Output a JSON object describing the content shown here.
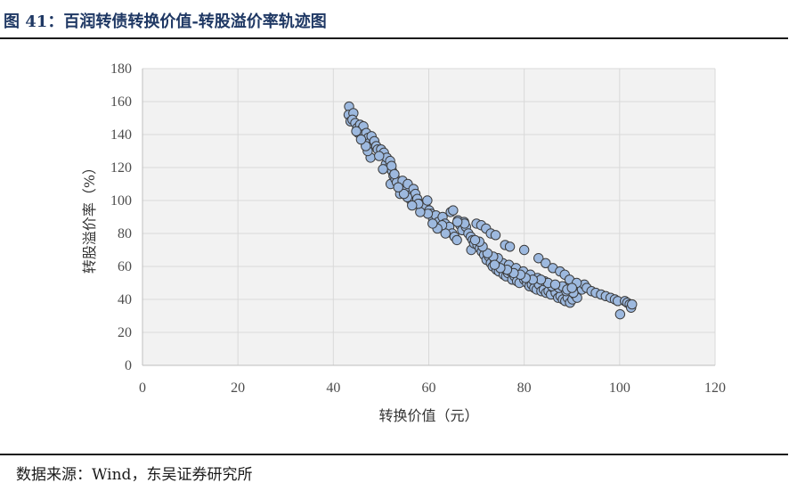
{
  "header": {
    "title": "图 41：百润转债转换价值-转股溢价率轨迹图"
  },
  "footer": {
    "source": "数据来源：Wind，东吴证券研究所"
  },
  "colors": {
    "title": "#1f3864",
    "marker_fill": "#9db9df",
    "marker_stroke": "#3b3b3b",
    "grid": "#d9d9d9",
    "plot_bg": "#f2f2f2"
  },
  "chart_data": {
    "type": "scatter",
    "title": "",
    "xlabel": "转换价值（元）",
    "ylabel": "转股溢价率（%）",
    "xlim": [
      0,
      120
    ],
    "ylim": [
      0,
      180
    ],
    "xticks": [
      0,
      20,
      40,
      60,
      80,
      100,
      120
    ],
    "yticks": [
      0,
      20,
      40,
      60,
      80,
      100,
      120,
      140,
      160,
      180
    ],
    "grid": true,
    "legend": "none",
    "points": [
      [
        43.3,
        157
      ],
      [
        43.2,
        152
      ],
      [
        43.6,
        148
      ],
      [
        44.2,
        153
      ],
      [
        44.0,
        149
      ],
      [
        44.6,
        147
      ],
      [
        45.0,
        144
      ],
      [
        45.2,
        141
      ],
      [
        45.6,
        146
      ],
      [
        45.9,
        143
      ],
      [
        46.3,
        145
      ],
      [
        46.2,
        140
      ],
      [
        46.6,
        137
      ],
      [
        46.9,
        141
      ],
      [
        47.3,
        138
      ],
      [
        47.6,
        135
      ],
      [
        48.0,
        139
      ],
      [
        48.3,
        134
      ],
      [
        48.6,
        136
      ],
      [
        49.0,
        133
      ],
      [
        47.8,
        126
      ],
      [
        49.3,
        131
      ],
      [
        50.0,
        131
      ],
      [
        50.6,
        129
      ],
      [
        51.0,
        122
      ],
      [
        51.2,
        126
      ],
      [
        51.6,
        120
      ],
      [
        51.9,
        124
      ],
      [
        52.3,
        118
      ],
      [
        52.2,
        121
      ],
      [
        52.6,
        115
      ],
      [
        52.0,
        110
      ],
      [
        53.0,
        113
      ],
      [
        53.3,
        111
      ],
      [
        53.9,
        108
      ],
      [
        54.5,
        112
      ],
      [
        54.0,
        104
      ],
      [
        55.0,
        106
      ],
      [
        55.6,
        110
      ],
      [
        56.0,
        103
      ],
      [
        56.3,
        100
      ],
      [
        56.8,
        107
      ],
      [
        57.2,
        104
      ],
      [
        57.6,
        101
      ],
      [
        58.0,
        98
      ],
      [
        58.4,
        96
      ],
      [
        58.8,
        95
      ],
      [
        59.3,
        97
      ],
      [
        59.7,
        100
      ],
      [
        60.1,
        94
      ],
      [
        60.5,
        92
      ],
      [
        60.9,
        89
      ],
      [
        61.5,
        91
      ],
      [
        62.0,
        87
      ],
      [
        62.4,
        84
      ],
      [
        62.9,
        90
      ],
      [
        63.4,
        86
      ],
      [
        63.8,
        82
      ],
      [
        64.3,
        84
      ],
      [
        64.9,
        80
      ],
      [
        65.4,
        78
      ],
      [
        65.9,
        76
      ],
      [
        64.6,
        93
      ],
      [
        65.1,
        94
      ],
      [
        66.1,
        88
      ],
      [
        66.6,
        85
      ],
      [
        67.0,
        82
      ],
      [
        67.4,
        87
      ],
      [
        67.8,
        84
      ],
      [
        68.3,
        80
      ],
      [
        68.8,
        78
      ],
      [
        69.2,
        76
      ],
      [
        68.9,
        70
      ],
      [
        69.5,
        74
      ],
      [
        70.2,
        73
      ],
      [
        70.7,
        71
      ],
      [
        71.1,
        69
      ],
      [
        71.6,
        67
      ],
      [
        72.1,
        64
      ],
      [
        72.6,
        66
      ],
      [
        73.0,
        62
      ],
      [
        73.4,
        60
      ],
      [
        73.9,
        63
      ],
      [
        74.2,
        58
      ],
      [
        74.7,
        57
      ],
      [
        75.2,
        60
      ],
      [
        75.7,
        55
      ],
      [
        76.2,
        54
      ],
      [
        76.6,
        56
      ],
      [
        77.1,
        57
      ],
      [
        77.5,
        52
      ],
      [
        78.0,
        54
      ],
      [
        78.5,
        51
      ],
      [
        79.0,
        50
      ],
      [
        79.5,
        56
      ],
      [
        80.0,
        52
      ],
      [
        80.6,
        50
      ],
      [
        81.1,
        48
      ],
      [
        81.6,
        49
      ],
      [
        82.1,
        47
      ],
      [
        82.6,
        46
      ],
      [
        83.1,
        49
      ],
      [
        83.6,
        45
      ],
      [
        84.1,
        46
      ],
      [
        84.6,
        44
      ],
      [
        85.1,
        45
      ],
      [
        85.6,
        43
      ],
      [
        86.1,
        47
      ],
      [
        86.6,
        44
      ],
      [
        87.1,
        41
      ],
      [
        87.6,
        42
      ],
      [
        88.1,
        40
      ],
      [
        88.6,
        39
      ],
      [
        89.1,
        41
      ],
      [
        89.6,
        38
      ],
      [
        90.1,
        40
      ],
      [
        90.6,
        43
      ],
      [
        91.1,
        41
      ],
      [
        91.6,
        48
      ],
      [
        92.1,
        46
      ],
      [
        92.6,
        49
      ],
      [
        93.1,
        47
      ],
      [
        94.1,
        45
      ],
      [
        95.0,
        44
      ],
      [
        96.1,
        43
      ],
      [
        97.1,
        42
      ],
      [
        98.1,
        41
      ],
      [
        99.0,
        40
      ],
      [
        99.6,
        39
      ],
      [
        100.1,
        31
      ],
      [
        101.1,
        39
      ],
      [
        101.6,
        38
      ],
      [
        102.1,
        37
      ],
      [
        102.4,
        35
      ],
      [
        102.6,
        37
      ],
      [
        70.0,
        86
      ],
      [
        71.0,
        85
      ],
      [
        72.0,
        83
      ],
      [
        73.0,
        80
      ],
      [
        74.0,
        79
      ],
      [
        76.0,
        73
      ],
      [
        77.0,
        72
      ],
      [
        80.0,
        70
      ],
      [
        83.0,
        65
      ],
      [
        84.5,
        62
      ],
      [
        86.0,
        59
      ],
      [
        87.5,
        57
      ],
      [
        88.5,
        55
      ],
      [
        89.5,
        52
      ],
      [
        91.0,
        50
      ],
      [
        67.5,
        86
      ],
      [
        66.0,
        87
      ],
      [
        63.5,
        80
      ],
      [
        62.8,
        85
      ],
      [
        61.8,
        83
      ],
      [
        60.8,
        86
      ],
      [
        59.8,
        92
      ],
      [
        58.2,
        93
      ],
      [
        57.8,
        98
      ],
      [
        56.5,
        97
      ],
      [
        55.5,
        102
      ],
      [
        54.8,
        104
      ],
      [
        53.6,
        108
      ],
      [
        52.8,
        116
      ],
      [
        50.4,
        119
      ],
      [
        49.6,
        127
      ],
      [
        47.2,
        130
      ],
      [
        46.8,
        133
      ],
      [
        45.8,
        137
      ],
      [
        44.8,
        142
      ],
      [
        75.5,
        62
      ],
      [
        76.8,
        61
      ],
      [
        78.3,
        59
      ],
      [
        79.8,
        57
      ],
      [
        81.3,
        55
      ],
      [
        82.8,
        53
      ],
      [
        84.3,
        51
      ],
      [
        85.8,
        48
      ],
      [
        87.3,
        47
      ],
      [
        88.8,
        45
      ],
      [
        90.3,
        44
      ],
      [
        74.5,
        65
      ],
      [
        73.5,
        66
      ],
      [
        72.3,
        68
      ],
      [
        71.3,
        72
      ],
      [
        70.6,
        75
      ],
      [
        69.7,
        76
      ],
      [
        88.0,
        48
      ],
      [
        89.0,
        46
      ],
      [
        90.0,
        47
      ],
      [
        85.0,
        50
      ],
      [
        86.5,
        49
      ],
      [
        83.5,
        52
      ],
      [
        81.8,
        52
      ],
      [
        80.3,
        53
      ],
      [
        79.2,
        55
      ],
      [
        77.8,
        56
      ],
      [
        76.4,
        58
      ],
      [
        75.0,
        59
      ],
      [
        73.8,
        61
      ]
    ]
  }
}
